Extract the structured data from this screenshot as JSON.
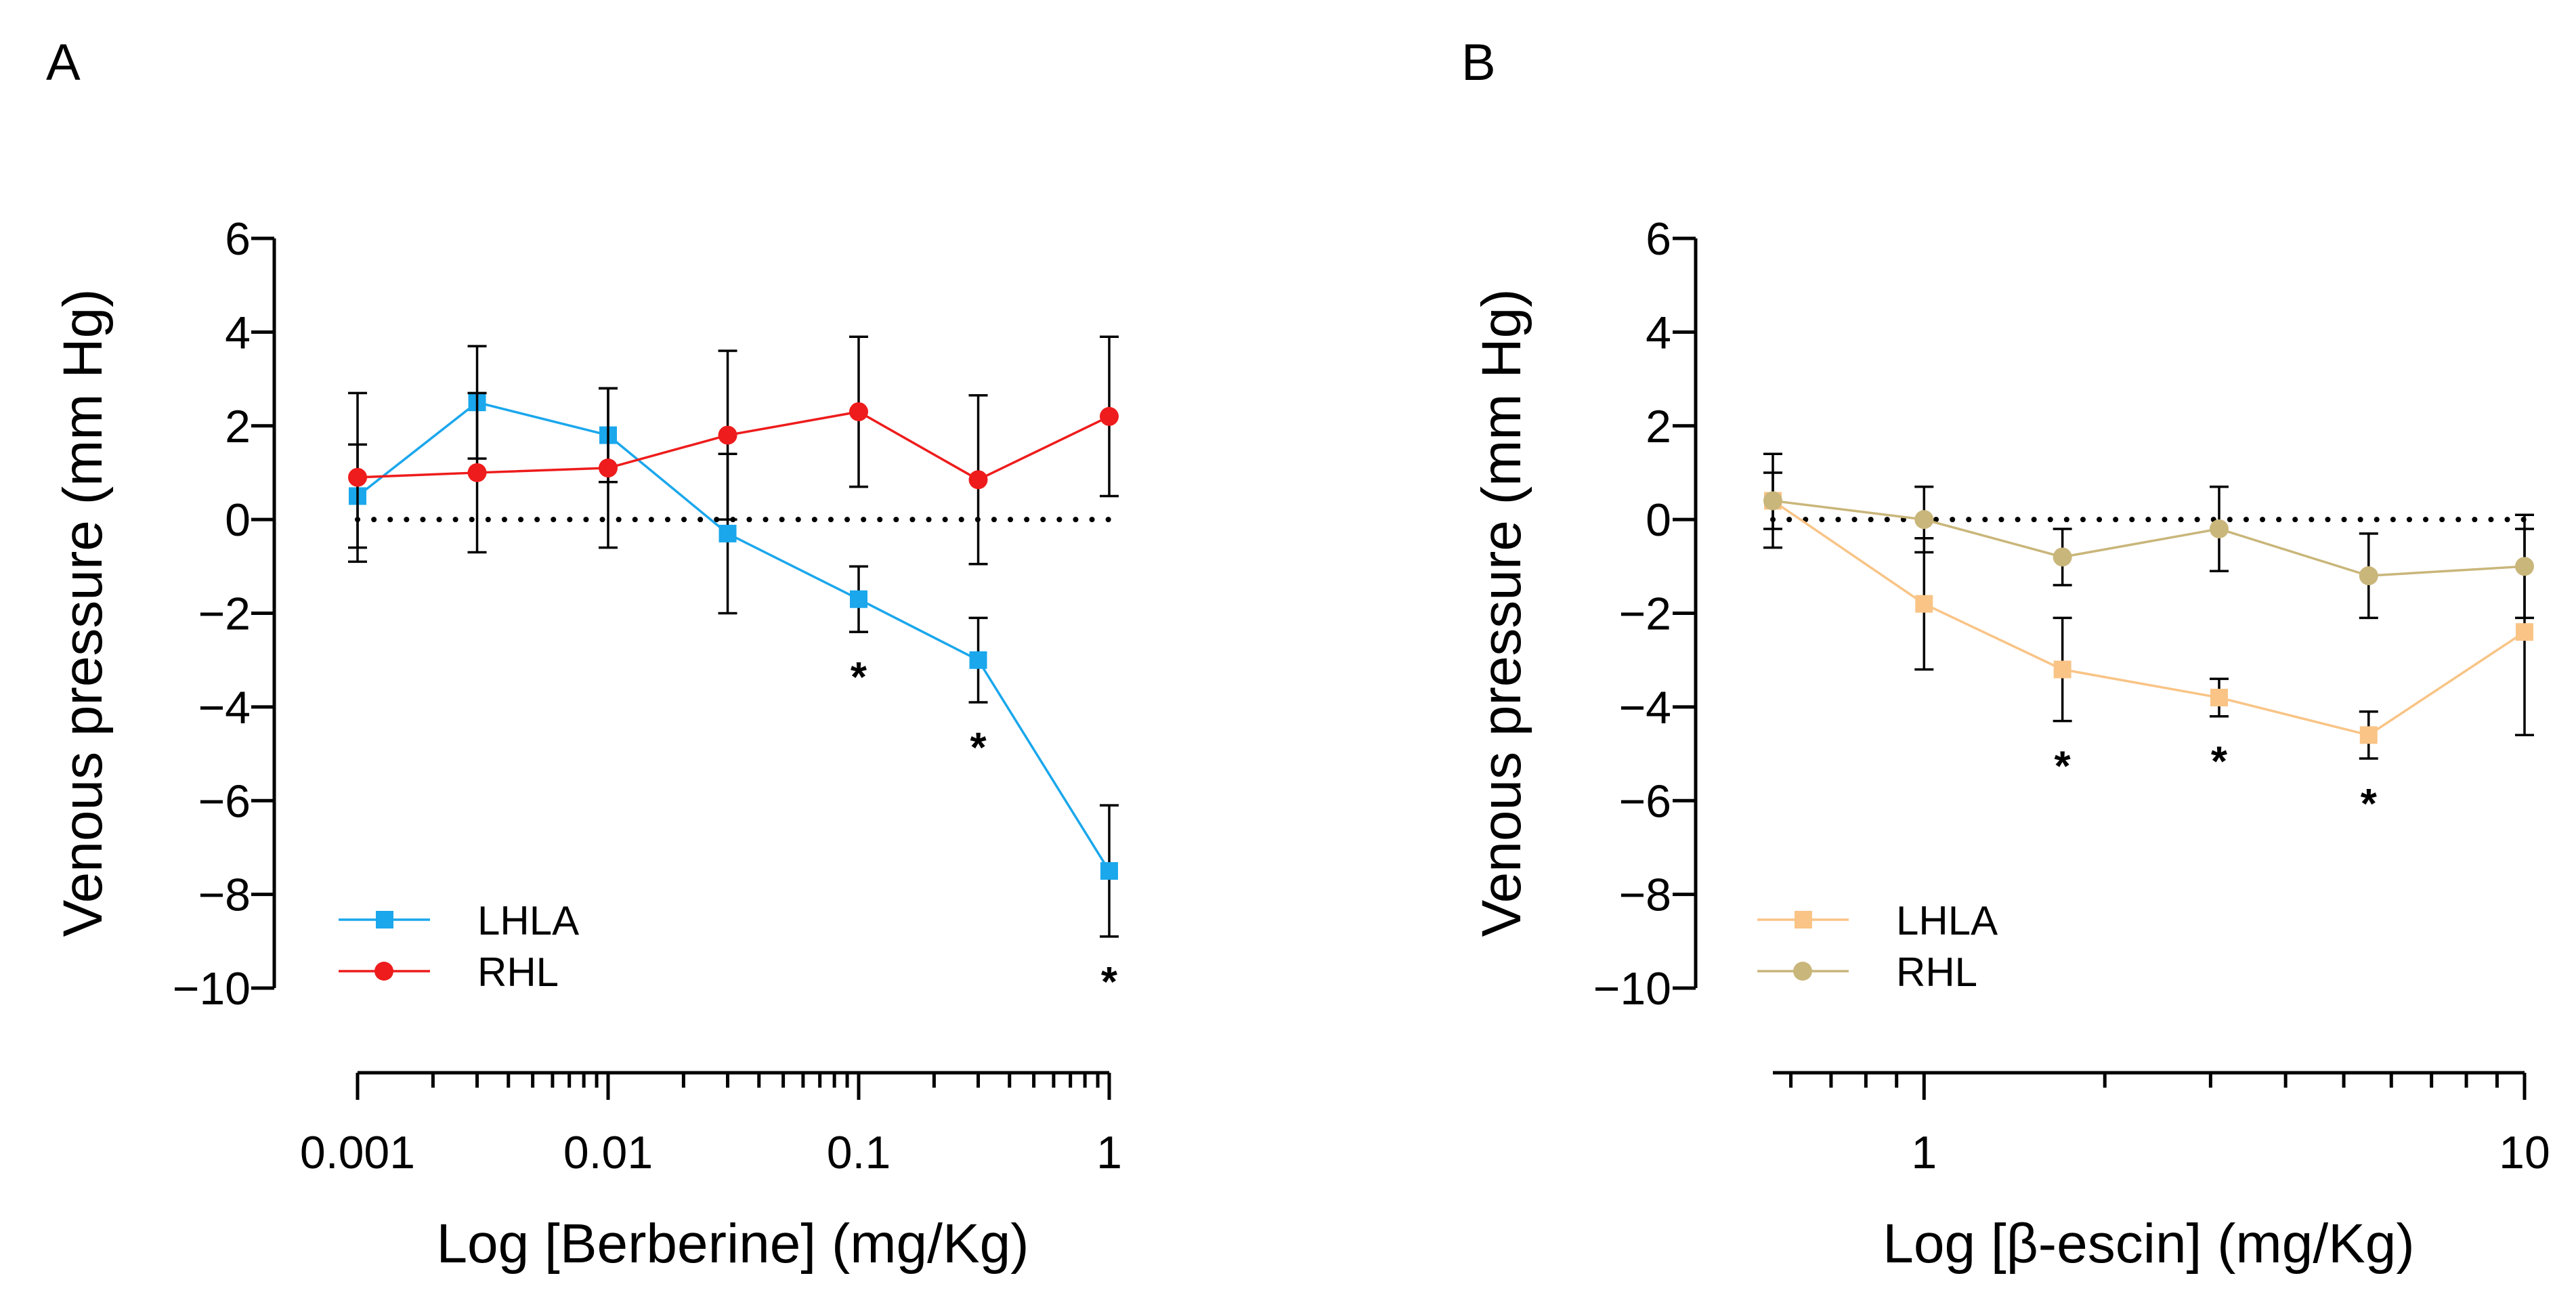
{
  "chart_data": [
    {
      "panel_label": "A",
      "type": "line",
      "xscale": "log",
      "xlim": [
        0.001,
        1
      ],
      "ylim": [
        -10,
        6
      ],
      "yticks": [
        6,
        4,
        2,
        0,
        -2,
        -4,
        -6,
        -8,
        -10
      ],
      "ytick_labels": [
        "6",
        "4",
        "2",
        "0",
        "−2",
        "−4",
        "−6",
        "−8",
        "−10"
      ],
      "xticks": [
        0.001,
        0.01,
        0.1,
        1
      ],
      "xtick_labels": [
        "0.001",
        "0.01",
        "0.1",
        "1"
      ],
      "xlabel": "Log [Berberine] (mg/Kg)",
      "ylabel": "Venous pressure (mm Hg)",
      "reference_line_y": 0,
      "legend_position": "lower-left",
      "series": [
        {
          "name": "LHLA",
          "color": "#1aa7ec",
          "marker": "square",
          "x": [
            0.001,
            0.003,
            0.01,
            0.03,
            0.1,
            0.3,
            1
          ],
          "y": [
            0.5,
            2.5,
            1.8,
            -0.3,
            -1.7,
            -3.0,
            -7.5
          ],
          "err": [
            1.1,
            1.2,
            1.0,
            1.7,
            0.7,
            0.9,
            1.4
          ],
          "significant": [
            false,
            false,
            false,
            false,
            true,
            true,
            true
          ]
        },
        {
          "name": "RHL",
          "color": "#ee1c1c",
          "marker": "circle",
          "x": [
            0.001,
            0.003,
            0.01,
            0.03,
            0.1,
            0.3,
            1
          ],
          "y": [
            0.9,
            1.0,
            1.1,
            1.8,
            2.3,
            0.85,
            2.2
          ],
          "err": [
            1.8,
            1.7,
            1.7,
            1.8,
            1.6,
            1.8,
            1.7
          ],
          "significant": [
            false,
            false,
            false,
            false,
            false,
            false,
            false
          ]
        }
      ],
      "significance_marker": "*"
    },
    {
      "panel_label": "B",
      "type": "line",
      "xscale": "log",
      "xlim": [
        0.56,
        10
      ],
      "ylim": [
        -10,
        6
      ],
      "yticks": [
        6,
        4,
        2,
        0,
        -2,
        -4,
        -6,
        -8,
        -10
      ],
      "ytick_labels": [
        "6",
        "4",
        "2",
        "0",
        "−2",
        "−4",
        "−6",
        "−8",
        "−10"
      ],
      "xticks": [
        1,
        10
      ],
      "xtick_labels": [
        "1",
        "10"
      ],
      "xlabel": "Log [β-escin] (mg/Kg)",
      "ylabel": "Venous pressure (mm Hg)",
      "reference_line_y": 0,
      "legend_position": "lower-left",
      "series": [
        {
          "name": "LHLA",
          "color": "#f9c486",
          "marker": "square",
          "x": [
            0.56,
            1.0,
            1.7,
            3.1,
            5.5,
            10
          ],
          "y": [
            0.4,
            -1.8,
            -3.2,
            -3.8,
            -4.6,
            -2.4
          ],
          "err": [
            1.0,
            1.4,
            1.1,
            0.4,
            0.5,
            2.2
          ],
          "significant": [
            false,
            false,
            true,
            true,
            true,
            false
          ]
        },
        {
          "name": "RHL",
          "color": "#c9b67a",
          "marker": "circle",
          "x": [
            0.56,
            1.0,
            1.7,
            3.1,
            5.5,
            10
          ],
          "y": [
            0.4,
            0.0,
            -0.8,
            -0.2,
            -1.2,
            -1.0
          ],
          "err": [
            0.6,
            0.7,
            0.6,
            0.9,
            0.9,
            1.1
          ],
          "significant": [
            false,
            false,
            false,
            false,
            false,
            false
          ]
        }
      ],
      "significance_marker": "*"
    }
  ]
}
